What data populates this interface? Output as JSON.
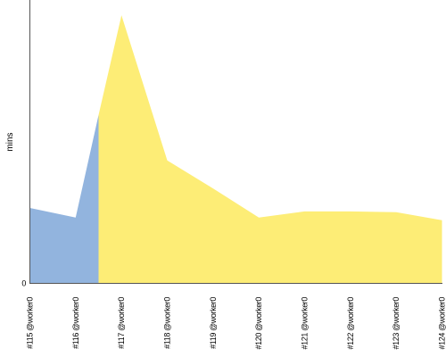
{
  "chart_data": {
    "type": "area",
    "title": "",
    "xlabel": "",
    "ylabel": "mins",
    "categories": [
      "#115 @worker0",
      "#116 @worker0",
      "#117 @worker0",
      "#118 @worker0",
      "#119 @worker0",
      "#120 @worker0",
      "#121 @worker0",
      "#122 @worker0",
      "#123 @worker0",
      "#124 @worker0"
    ],
    "y_tick_labels": [
      "0"
    ],
    "ylim": [
      0,
      100
    ],
    "grid": false,
    "segments": [
      {
        "color": "#92b4de",
        "points": [
          [
            0,
            26.6
          ],
          [
            1,
            23.2
          ],
          [
            1.5,
            59.4
          ]
        ]
      },
      {
        "color": "#fded76",
        "points": [
          [
            1.5,
            59.4
          ],
          [
            2,
            94.6
          ],
          [
            3,
            43.4
          ],
          [
            4,
            33.5
          ],
          [
            5,
            23.2
          ],
          [
            6,
            25.4
          ],
          [
            7,
            25.4
          ],
          [
            8,
            25.1
          ],
          [
            9,
            22.3
          ]
        ]
      }
    ]
  }
}
